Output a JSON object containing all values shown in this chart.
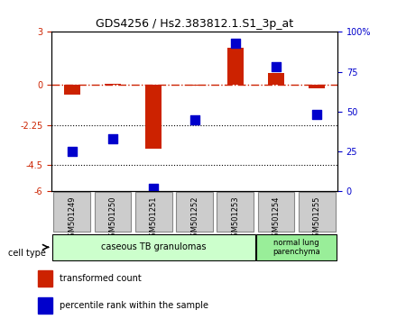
{
  "title": "GDS4256 / Hs2.383812.1.S1_3p_at",
  "samples": [
    "GSM501249",
    "GSM501250",
    "GSM501251",
    "GSM501252",
    "GSM501253",
    "GSM501254",
    "GSM501255"
  ],
  "transformed_count": [
    -0.55,
    0.05,
    -3.6,
    -0.05,
    2.1,
    0.7,
    -0.2
  ],
  "percentile_rank": [
    25,
    33,
    2,
    45,
    93,
    78,
    48
  ],
  "ylim_left": [
    -6,
    3
  ],
  "ylim_right": [
    0,
    100
  ],
  "yticks_left": [
    -6,
    -4.5,
    -2.25,
    0,
    3
  ],
  "ytick_labels_left": [
    "-6",
    "-4.5",
    "-2.25",
    "0",
    "3"
  ],
  "yticks_right": [
    0,
    25,
    50,
    75,
    100
  ],
  "ytick_labels_right": [
    "0",
    "25",
    "50",
    "75",
    "100%"
  ],
  "hline_y": 0,
  "dotted_lines": [
    -2.25,
    -4.5
  ],
  "bar_color": "#cc2200",
  "dot_color": "#0000cc",
  "bar_width": 0.4,
  "dot_size": 60,
  "group1": {
    "label": "caseous TB granulomas",
    "samples": [
      0,
      1,
      2,
      3,
      4
    ],
    "color": "#ccffcc"
  },
  "group2": {
    "label": "normal lung\nparenchyma",
    "samples": [
      5,
      6
    ],
    "color": "#99ee99"
  },
  "cell_type_label": "cell type",
  "legend_red": "transformed count",
  "legend_blue": "percentile rank within the sample",
  "sample_box_color": "#cccccc",
  "sample_box_border": "#888888"
}
